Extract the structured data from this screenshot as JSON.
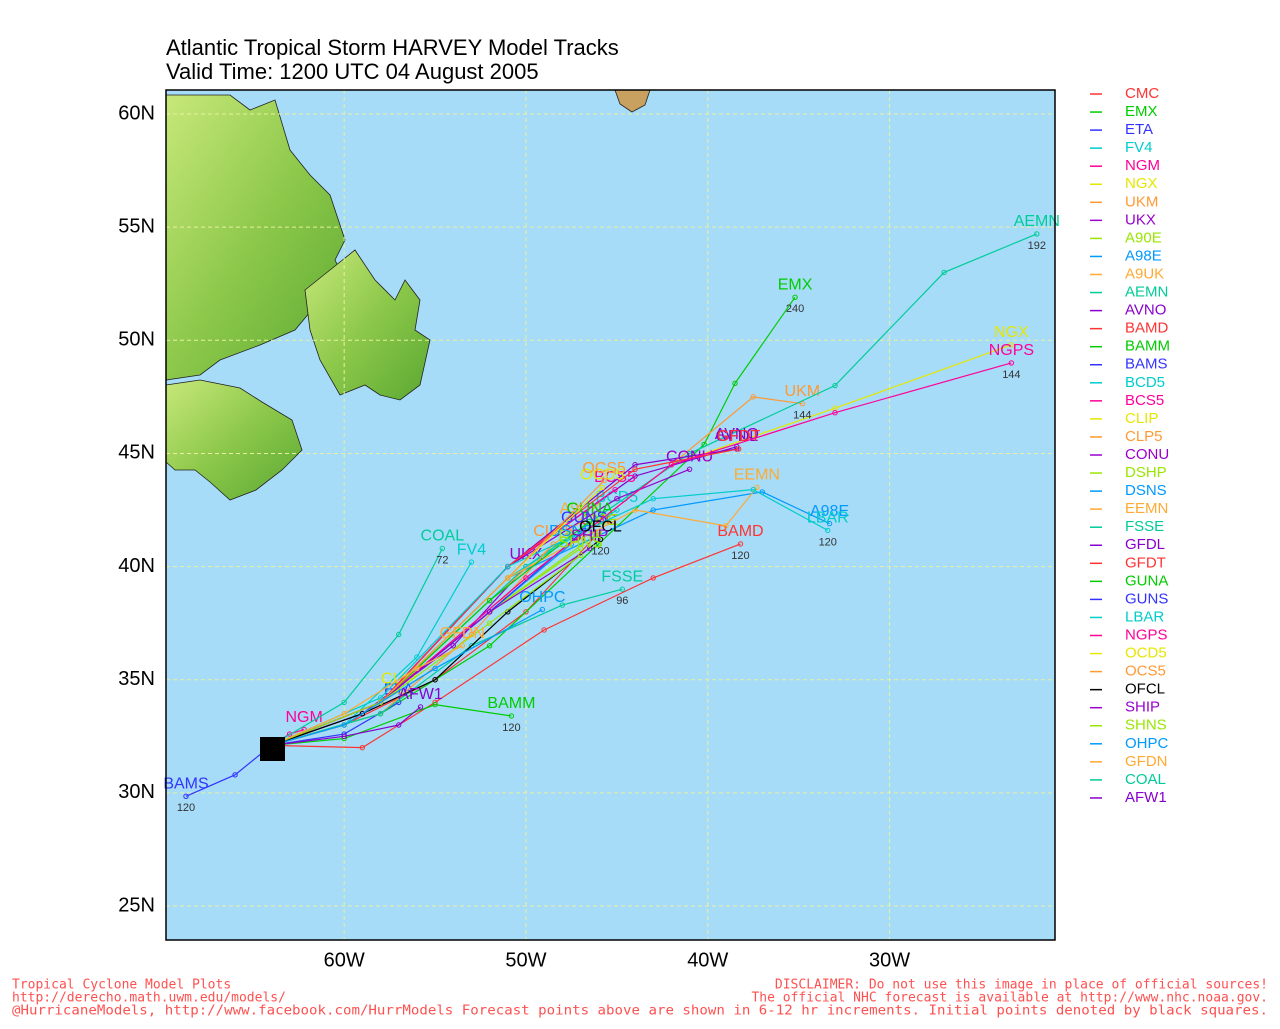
{
  "map": {
    "title": "Atlantic Tropical Storm HARVEY Model Tracks",
    "subtitle": "Valid Time: 1200 UTC 04 August 2005",
    "grid": true,
    "lonlim": [
      -69.8,
      -20.9
    ],
    "latlim": [
      23.5,
      61.06
    ],
    "lonticks": [
      {
        "value": -60,
        "label": "60W"
      },
      {
        "value": -50,
        "label": "50W"
      },
      {
        "value": -40,
        "label": "40W"
      },
      {
        "value": -30,
        "label": "30W"
      }
    ],
    "latticks": [
      {
        "value": 25,
        "label": "25N"
      },
      {
        "value": 30,
        "label": "30N"
      },
      {
        "value": 35,
        "label": "35N"
      },
      {
        "value": 40,
        "label": "40N"
      },
      {
        "value": 45,
        "label": "45N"
      },
      {
        "value": 50,
        "label": "50N"
      },
      {
        "value": 55,
        "label": "55N"
      },
      {
        "value": 60,
        "label": "60N"
      }
    ],
    "models": [
      {
        "name": "CMC",
        "color": "#ff3333",
        "lon": [
          -64,
          -60,
          -55,
          -50,
          -46
        ],
        "lat": [
          32.1,
          33,
          35,
          38,
          41.5
        ]
      },
      {
        "name": "EMX",
        "color": "#00cc00",
        "lon": [
          -64,
          -58,
          -52,
          -46,
          -40.2,
          -38.5,
          -35.2
        ],
        "lat": [
          32.1,
          33.5,
          36.5,
          41,
          45.4,
          48.1,
          51.9
        ],
        "end_hour": 240
      },
      {
        "name": "ETA",
        "color": "#3333ff",
        "lon": [
          -64,
          -60,
          -57
        ],
        "lat": [
          32.1,
          32.6,
          34
        ]
      },
      {
        "name": "FV4",
        "color": "#00cccc",
        "lon": [
          -64,
          -60,
          -56,
          -53
        ],
        "lat": [
          32.1,
          33,
          36,
          40.2
        ]
      },
      {
        "name": "NGM",
        "color": "#ff0099",
        "lon": [
          -64,
          -63,
          -62.2
        ],
        "lat": [
          32.1,
          32.6,
          32.8
        ]
      },
      {
        "name": "NGX",
        "color": "#e6e600",
        "lon": [
          -64,
          -58,
          -50,
          -42,
          -33,
          -23.3
        ],
        "lat": [
          32.1,
          34,
          39.5,
          44.5,
          47,
          49.8
        ]
      },
      {
        "name": "UKM",
        "color": "#ff9933",
        "lon": [
          -64,
          -58,
          -50,
          -42,
          -37.5,
          -34.8
        ],
        "lat": [
          32.1,
          34,
          39.5,
          44.5,
          47.5,
          47.2
        ],
        "end_hour": 144
      },
      {
        "name": "UKX",
        "color": "#9900cc",
        "lon": [
          -64,
          -59,
          -54,
          -50
        ],
        "lat": [
          32.1,
          33.5,
          36.5,
          40
        ]
      },
      {
        "name": "A90E",
        "color": "#99e600",
        "lon": [
          -64,
          -58,
          -52,
          -46
        ],
        "lat": [
          32.1,
          34,
          38,
          41.5
        ]
      },
      {
        "name": "A98E",
        "color": "#0099ff",
        "lon": [
          -64,
          -58,
          -51,
          -43,
          -37,
          -33.3
        ],
        "lat": [
          32.1,
          34,
          39.5,
          42.5,
          43.3,
          41.9
        ]
      },
      {
        "name": "A9UK",
        "color": "#ffaa33",
        "lon": [
          -64,
          -58,
          -52,
          -47
        ],
        "lat": [
          32.1,
          34,
          38.5,
          42
        ]
      },
      {
        "name": "AEMN",
        "color": "#00cc99",
        "lon": [
          -64,
          -58,
          -50,
          -41,
          -33,
          -27,
          -21.9
        ],
        "lat": [
          32.1,
          34,
          40,
          45,
          48,
          53,
          54.7
        ],
        "end_hour": 192
      },
      {
        "name": "AVNO",
        "color": "#8800cc",
        "lon": [
          -64,
          -58,
          -51,
          -44,
          -38.4
        ],
        "lat": [
          32.1,
          34,
          40,
          44,
          45.3
        ]
      },
      {
        "name": "BAMD",
        "color": "#ff3333",
        "lon": [
          -64,
          -59,
          -55,
          -49,
          -43,
          -38.2
        ],
        "lat": [
          32.1,
          32,
          34,
          37.2,
          39.5,
          41
        ],
        "end_hour": 120
      },
      {
        "name": "BAMM",
        "color": "#00cc00",
        "lon": [
          -64,
          -60,
          -55,
          -50.8
        ],
        "lat": [
          32.1,
          32.4,
          33.9,
          33.4
        ],
        "end_hour": 120
      },
      {
        "name": "BAMS",
        "color": "#3333ff",
        "lon": [
          -64,
          -66,
          -68.7
        ],
        "lat": [
          32.1,
          30.8,
          29.85
        ],
        "end_hour": 120
      },
      {
        "name": "BCD5",
        "color": "#00cccc",
        "lon": [
          -64,
          -58,
          -51,
          -45
        ],
        "lat": [
          32.1,
          34,
          39.5,
          42.5
        ]
      },
      {
        "name": "BCS5",
        "color": "#ff0099",
        "lon": [
          -64,
          -58,
          -51,
          -45.1
        ],
        "lat": [
          32.1,
          34,
          40,
          43.4
        ]
      },
      {
        "name": "CLIP",
        "color": "#e6e600",
        "lon": [
          -64,
          -60,
          -57
        ],
        "lat": [
          32.1,
          33,
          34.5
        ]
      },
      {
        "name": "CLP5",
        "color": "#ff9933",
        "lon": [
          -64,
          -58,
          -53,
          -48.5
        ],
        "lat": [
          32.1,
          33.5,
          37,
          41
        ]
      },
      {
        "name": "CONU",
        "color": "#9900cc",
        "lon": [
          -64,
          -58,
          -51,
          -45,
          -41
        ],
        "lat": [
          32.1,
          34,
          40,
          43,
          44.3
        ]
      },
      {
        "name": "DSHP",
        "color": "#99e600",
        "lon": [
          -64,
          -58,
          -52,
          -47
        ],
        "lat": [
          32.1,
          34,
          38,
          40.8
        ]
      },
      {
        "name": "DSNS",
        "color": "#0099ff",
        "lon": [
          -64,
          -58,
          -52,
          -47.5
        ],
        "lat": [
          32.1,
          34,
          38,
          41
        ]
      },
      {
        "name": "EEMN",
        "color": "#ffaa33",
        "lon": [
          -64,
          -58,
          -51,
          -44,
          -39,
          -37.3
        ],
        "lat": [
          32.1,
          34,
          39.5,
          42.5,
          41.8,
          43.5
        ]
      },
      {
        "name": "FSSE",
        "color": "#00cc99",
        "lon": [
          -64,
          -58,
          -53,
          -48,
          -44.7
        ],
        "lat": [
          32.1,
          33.5,
          36.5,
          38.3,
          39
        ],
        "end_hour": 96
      },
      {
        "name": "GFDL",
        "color": "#8800cc",
        "lon": [
          -64,
          -58,
          -51,
          -44,
          -38.4
        ],
        "lat": [
          32.1,
          34,
          40,
          44.5,
          45.2
        ]
      },
      {
        "name": "GFDT",
        "color": "#ff3333",
        "lon": [
          -64,
          -58,
          -51,
          -44,
          -38.3
        ],
        "lat": [
          32.1,
          34,
          40,
          44.3,
          45.2
        ]
      },
      {
        "name": "GUNA",
        "color": "#00cc00",
        "lon": [
          -64,
          -58,
          -52,
          -46.5
        ],
        "lat": [
          32.1,
          34,
          38.5,
          42
        ]
      },
      {
        "name": "GUNS",
        "color": "#3333ff",
        "lon": [
          -64,
          -58,
          -52,
          -46.8
        ],
        "lat": [
          32.1,
          34,
          38,
          41.6
        ]
      },
      {
        "name": "LBAR",
        "color": "#00cccc",
        "lon": [
          -64,
          -58,
          -51,
          -43,
          -37.5,
          -33.4
        ],
        "lat": [
          32.1,
          34.2,
          40,
          43,
          43.4,
          41.6
        ],
        "end_hour": 120
      },
      {
        "name": "NGPS",
        "color": "#ff0099",
        "lon": [
          -64,
          -58,
          -50,
          -42,
          -33,
          -23.3
        ],
        "lat": [
          32.1,
          34,
          39.5,
          44.5,
          46.8,
          49
        ],
        "end_hour": 144
      },
      {
        "name": "OCD5",
        "color": "#e6e600",
        "lon": [
          -64,
          -58,
          -51,
          -45.8
        ],
        "lat": [
          32.1,
          34,
          39.5,
          43.5
        ]
      },
      {
        "name": "OCS5",
        "color": "#ff9933",
        "lon": [
          -64,
          -58,
          -51,
          -45.7
        ],
        "lat": [
          32.1,
          34,
          39.5,
          43.8
        ]
      },
      {
        "name": "OFCL",
        "color": "#000000",
        "lon": [
          -64,
          -59,
          -55,
          -51,
          -45.9
        ],
        "lat": [
          32.1,
          33.5,
          35,
          38,
          41.2
        ],
        "end_hour": 120
      },
      {
        "name": "SHIP",
        "color": "#9900cc",
        "lon": [
          -64,
          -58,
          -52,
          -46.5
        ],
        "lat": [
          32.1,
          34,
          38,
          40.8
        ]
      },
      {
        "name": "SHNS",
        "color": "#99e600",
        "lon": [
          -64,
          -58,
          -52,
          -47
        ],
        "lat": [
          32.1,
          34,
          37.5,
          40.5
        ]
      },
      {
        "name": "OHPC",
        "color": "#0099ff",
        "lon": [
          -64,
          -60,
          -55,
          -49.1
        ],
        "lat": [
          32.1,
          33,
          35.5,
          38.1
        ]
      },
      {
        "name": "GFDN",
        "color": "#ffaa33",
        "lon": [
          -64,
          -60,
          -56,
          -53.5
        ],
        "lat": [
          32.1,
          33.5,
          35.5,
          36.5
        ]
      },
      {
        "name": "COAL",
        "color": "#00cc99",
        "lon": [
          -64,
          -60,
          -57,
          -54.6
        ],
        "lat": [
          32.1,
          34,
          37,
          40.8
        ],
        "end_hour": 72
      },
      {
        "name": "AFW1",
        "color": "#8800cc",
        "lon": [
          -64,
          -60,
          -57,
          -55.8
        ],
        "lat": [
          32.1,
          32.5,
          33,
          33.8
        ]
      }
    ]
  },
  "footer": {
    "left": [
      "Tropical Cyclone Model Plots",
      "http://derecho.math.uwm.edu/models/"
    ],
    "right": [
      "DISCLAIMER: Do not use this image in place of official sources!",
      "The official NHC forecast is available at http://www.nhc.noaa.gov."
    ],
    "bottom": "@HurricaneModels, http://www.facebook.com/HurrModels  Forecast points above are shown in 6-12 hr increments. Initial points denoted by black squares."
  }
}
